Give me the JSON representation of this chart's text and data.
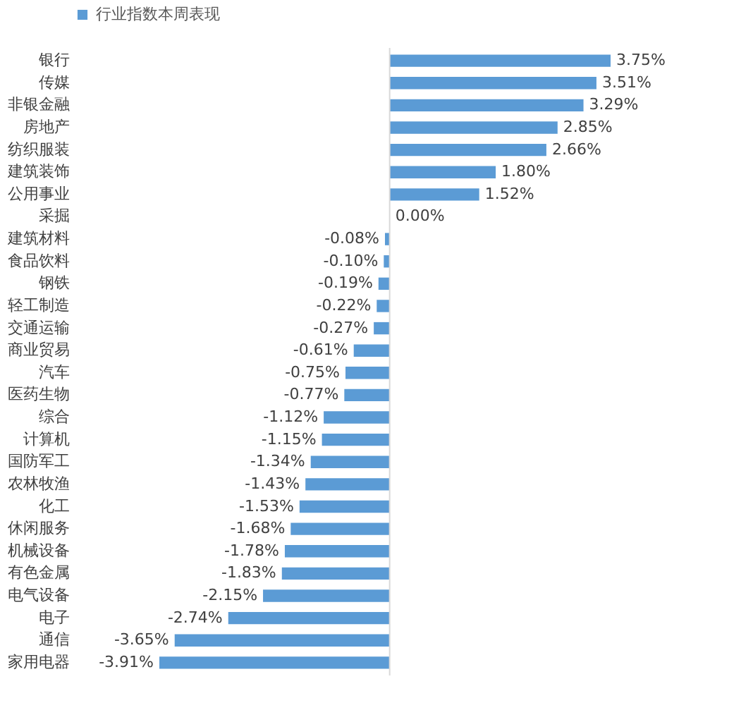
{
  "chart_data": {
    "type": "bar",
    "orientation": "horizontal",
    "categories": [
      "银行",
      "传媒",
      "非银金融",
      "房地产",
      "纺织服装",
      "建筑装饰",
      "公用事业",
      "采掘",
      "建筑材料",
      "食品饮料",
      "钢铁",
      "轻工制造",
      "交通运输",
      "商业贸易",
      "汽车",
      "医药生物",
      "综合",
      "计算机",
      "国防军工",
      "农林牧渔",
      "化工",
      "休闲服务",
      "机械设备",
      "有色金属",
      "电气设备",
      "电子",
      "通信",
      "家用电器"
    ],
    "series": [
      {
        "name": "行业指数本周表现",
        "color": "#5b9bd5",
        "values": [
          3.75,
          3.51,
          3.29,
          2.85,
          2.66,
          1.8,
          1.52,
          0.0,
          -0.08,
          -0.1,
          -0.19,
          -0.22,
          -0.27,
          -0.61,
          -0.75,
          -0.77,
          -1.12,
          -1.15,
          -1.34,
          -1.43,
          -1.53,
          -1.68,
          -1.78,
          -1.83,
          -2.15,
          -2.74,
          -3.65,
          -3.91
        ],
        "value_labels": [
          "3.75%",
          "3.51%",
          "3.29%",
          "2.85%",
          "2.66%",
          "1.80%",
          "1.52%",
          "0.00%",
          "-0.08%",
          "-0.10%",
          "-0.19%",
          "-0.22%",
          "-0.27%",
          "-0.61%",
          "-0.75%",
          "-0.77%",
          "-1.12%",
          "-1.15%",
          "-1.34%",
          "-1.43%",
          "-1.53%",
          "-1.68%",
          "-1.78%",
          "-1.83%",
          "-2.15%",
          "-2.74%",
          "-3.65%",
          "-3.91%"
        ]
      }
    ],
    "tick_labels": "y",
    "legend": "top",
    "grid": false
  }
}
